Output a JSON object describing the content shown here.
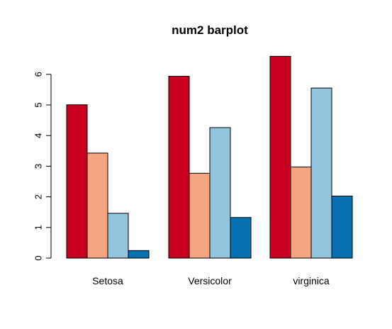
{
  "chart_data": {
    "type": "bar",
    "title": "num2 barplot",
    "xlabel": "",
    "ylabel": "",
    "categories": [
      "Setosa",
      "Versicolor",
      "virginica"
    ],
    "series": [
      {
        "values": [
          5.006,
          5.936,
          6.588
        ],
        "color": "#ca0020"
      },
      {
        "values": [
          3.428,
          2.77,
          2.974
        ],
        "color": "#f4a582"
      },
      {
        "values": [
          1.462,
          4.26,
          5.552
        ],
        "color": "#92c5de"
      },
      {
        "values": [
          0.246,
          1.326,
          2.026
        ],
        "color": "#0571b0"
      }
    ],
    "yticks": [
      "0",
      "1",
      "2",
      "3",
      "4",
      "5",
      "6"
    ],
    "ylim": [
      0,
      6.6
    ],
    "grid": false,
    "legend": "none"
  }
}
